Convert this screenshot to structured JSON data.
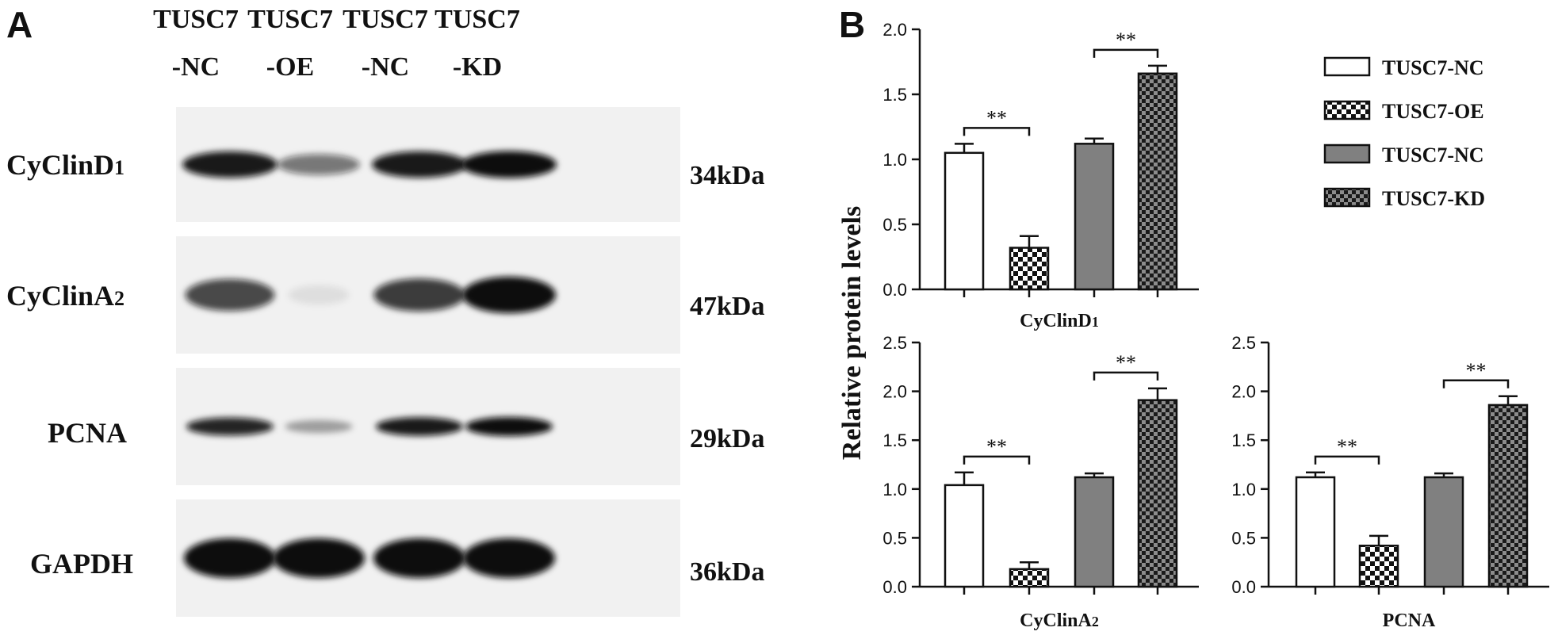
{
  "panel_a": {
    "letter": "A",
    "lanes": [
      {
        "line1": "TUSC7",
        "line2": "-NC"
      },
      {
        "line1": "TUSC7",
        "line2": "-OE"
      },
      {
        "line1": "TUSC7",
        "line2": "-NC"
      },
      {
        "line1": "TUSC7",
        "line2": "-KD"
      }
    ],
    "blots": [
      {
        "main": "CyClinD",
        "sub": "1",
        "kda": "34kDa",
        "intensity": [
          0.95,
          0.55,
          0.95,
          1.0
        ]
      },
      {
        "main": "CyClinA",
        "sub": "2",
        "kda": "47kDa",
        "intensity": [
          0.75,
          0.08,
          0.8,
          1.0
        ]
      },
      {
        "main": "PCNA",
        "sub": "",
        "kda": "29kDa",
        "intensity": [
          0.9,
          0.35,
          0.95,
          1.0
        ]
      },
      {
        "main": "GAPDH",
        "sub": "",
        "kda": "36kDa",
        "intensity": [
          1.0,
          1.0,
          1.0,
          1.0
        ]
      }
    ]
  },
  "panel_b": {
    "letter": "B",
    "ylabel": "Relative protein levels",
    "legend": [
      {
        "label": "TUSC7-NC",
        "pattern": "white"
      },
      {
        "label": "TUSC7-OE",
        "pattern": "checker-light"
      },
      {
        "label": "TUSC7-NC",
        "pattern": "gray"
      },
      {
        "label": "TUSC7-KD",
        "pattern": "checker-dark"
      }
    ],
    "significance": "**"
  },
  "chart_data": [
    {
      "type": "bar",
      "title": "",
      "xlabel": "CyClinD1",
      "xlabel_main": "CyClinD",
      "xlabel_sub": "1",
      "ylabel": "Relative protein levels",
      "ylim": [
        0,
        2.0
      ],
      "yticks": [
        "0.0",
        "0.5",
        "1.0",
        "1.5",
        "2.0"
      ],
      "ytick_values": [
        0,
        0.5,
        1.0,
        1.5,
        2.0
      ],
      "categories": [
        "TUSC7-NC",
        "TUSC7-OE",
        "TUSC7-NC",
        "TUSC7-KD"
      ],
      "values": [
        1.05,
        0.32,
        1.12,
        1.66
      ],
      "errors": [
        0.07,
        0.09,
        0.04,
        0.06
      ],
      "comparisons": [
        {
          "pair": [
            0,
            1
          ],
          "label": "**"
        },
        {
          "pair": [
            2,
            3
          ],
          "label": "**"
        }
      ]
    },
    {
      "type": "bar",
      "title": "",
      "xlabel": "CyClinA2",
      "xlabel_main": "CyClinA",
      "xlabel_sub": "2",
      "ylabel": "Relative protein levels",
      "ylim": [
        0,
        2.5
      ],
      "yticks": [
        "0.0",
        "0.5",
        "1.0",
        "1.5",
        "2.0",
        "2.5"
      ],
      "ytick_values": [
        0,
        0.5,
        1.0,
        1.5,
        2.0,
        2.5
      ],
      "categories": [
        "TUSC7-NC",
        "TUSC7-OE",
        "TUSC7-NC",
        "TUSC7-KD"
      ],
      "values": [
        1.04,
        0.18,
        1.12,
        1.91
      ],
      "errors": [
        0.13,
        0.07,
        0.04,
        0.12
      ],
      "comparisons": [
        {
          "pair": [
            0,
            1
          ],
          "label": "**"
        },
        {
          "pair": [
            2,
            3
          ],
          "label": "**"
        }
      ]
    },
    {
      "type": "bar",
      "title": "",
      "xlabel": "PCNA",
      "xlabel_main": "PCNA",
      "xlabel_sub": "",
      "ylabel": "",
      "ylim": [
        0,
        2.5
      ],
      "yticks": [
        "0.0",
        "0.5",
        "1.0",
        "1.5",
        "2.0",
        "2.5"
      ],
      "ytick_values": [
        0,
        0.5,
        1.0,
        1.5,
        2.0,
        2.5
      ],
      "categories": [
        "TUSC7-NC",
        "TUSC7-OE",
        "TUSC7-NC",
        "TUSC7-KD"
      ],
      "values": [
        1.12,
        0.42,
        1.12,
        1.86
      ],
      "errors": [
        0.05,
        0.1,
        0.04,
        0.09
      ],
      "comparisons": [
        {
          "pair": [
            0,
            1
          ],
          "label": "**"
        },
        {
          "pair": [
            2,
            3
          ],
          "label": "**"
        }
      ]
    }
  ]
}
